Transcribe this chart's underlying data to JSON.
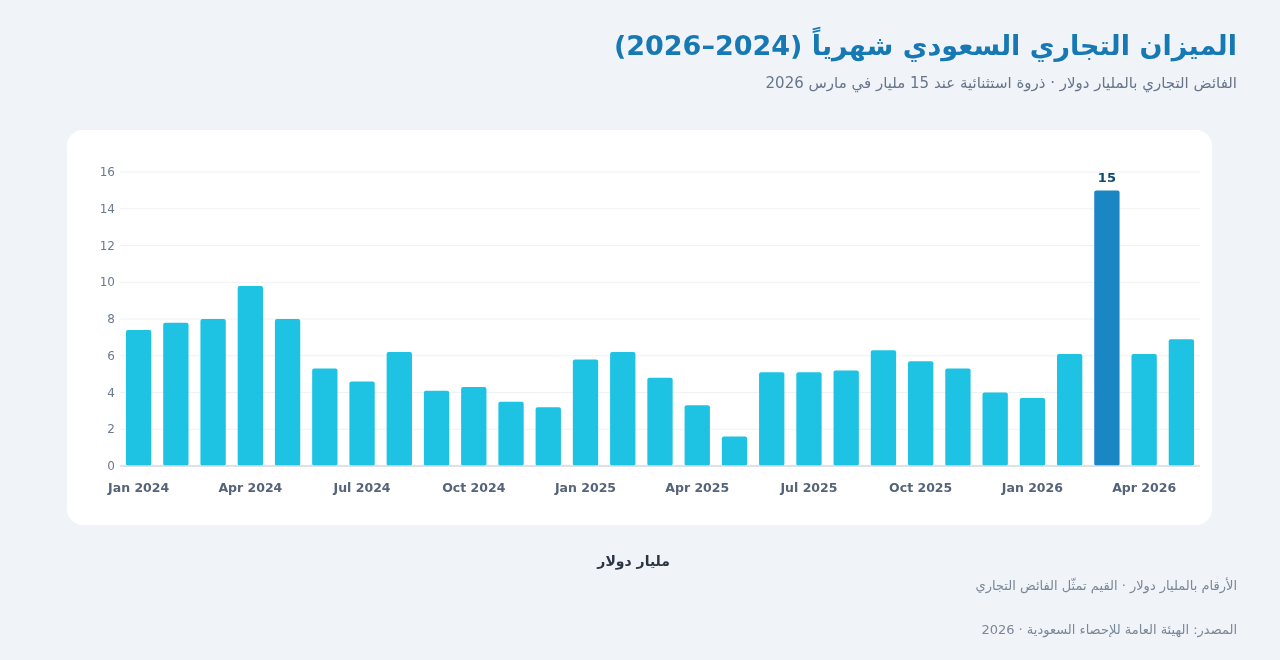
{
  "chart_data": {
    "type": "bar",
    "title": "الميزان التجاري السعودي شهرياً (2024–2026)",
    "subtitle": "الفائض التجاري بالمليار دولار · ذروة استثنائية عند 15 مليار في مارس 2026",
    "xlabel": "مليار دولار",
    "annotations": [
      "الأرقام بالمليار دولار · القيم تمثّل الفائض التجاري",
      "المصدر: الهيئة العامة للإحصاء السعودية · 2026"
    ],
    "categories": [
      "Jan 2024",
      null,
      null,
      "Apr 2024",
      null,
      null,
      "Jul 2024",
      null,
      null,
      "Oct 2024",
      null,
      null,
      "Jan 2025",
      null,
      null,
      "Apr 2025",
      null,
      null,
      "Jul 2025",
      null,
      null,
      "Oct 2025",
      null,
      null,
      "Jan 2026",
      null,
      null,
      "Apr 2026",
      null
    ],
    "values": [
      7.4,
      7.8,
      8.0,
      9.8,
      8.0,
      5.3,
      4.6,
      6.2,
      4.1,
      4.3,
      3.5,
      3.2,
      5.8,
      6.2,
      4.8,
      3.3,
      1.6,
      5.1,
      5.1,
      5.2,
      6.3,
      5.7,
      5.3,
      4.0,
      3.7,
      6.1,
      15,
      6.1,
      6.9
    ],
    "colors": [
      "#1ec2e2",
      "#1ec2e2",
      "#1ec2e2",
      "#1ec2e2",
      "#1ec2e2",
      "#1ec2e2",
      "#1ec2e2",
      "#1ec2e2",
      "#1ec2e2",
      "#1ec2e2",
      "#1ec2e2",
      "#1ec2e2",
      "#1ec2e2",
      "#1ec2e2",
      "#1ec2e2",
      "#1ec2e2",
      "#1ec2e2",
      "#1ec2e2",
      "#1ec2e2",
      "#1ec2e2",
      "#1ec2e2",
      "#1ec2e2",
      "#1ec2e2",
      "#1ec2e2",
      "#1ec2e2",
      "#1ec2e2",
      "#1a86c4",
      "#1ec2e2",
      "#1ec2e2"
    ],
    "value_labels": [
      null,
      null,
      null,
      null,
      null,
      null,
      null,
      null,
      null,
      null,
      null,
      null,
      null,
      null,
      null,
      null,
      null,
      null,
      null,
      null,
      null,
      null,
      null,
      null,
      null,
      null,
      "15",
      null,
      null
    ],
    "ylim": [
      0,
      16
    ],
    "yticks": [
      0,
      2,
      4,
      6,
      8,
      10,
      12,
      14,
      16
    ],
    "grid": "y"
  }
}
